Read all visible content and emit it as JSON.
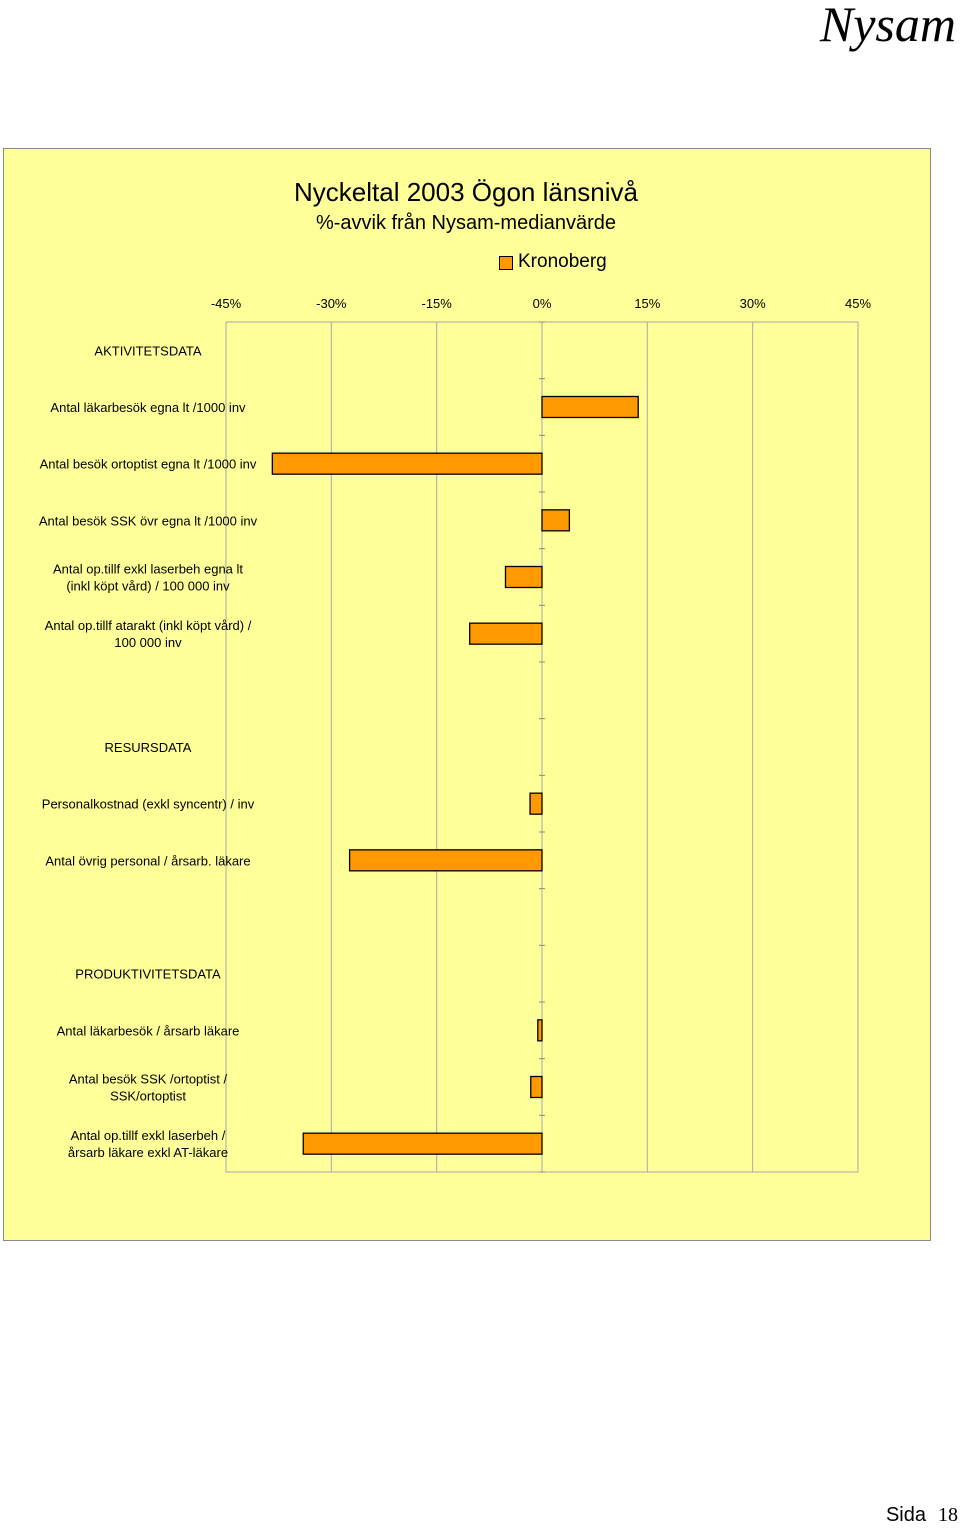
{
  "header": {
    "brand": "Nysam"
  },
  "footer": {
    "page_label": "Sida",
    "page_number": "18"
  },
  "colors": {
    "panel_bg": "#ffff99",
    "bar_fill": "#ff9900",
    "bar_stroke": "#000000",
    "grid": "#aaaaaa"
  },
  "chart_data": {
    "type": "bar",
    "orientation": "horizontal",
    "title": "Nyckeltal 2003  Ögon länsnivå",
    "subtitle": "%-avvik från Nysam-medianvärde",
    "legend": [
      "Kronoberg"
    ],
    "legend_position": "top-right",
    "xlim": [
      -45,
      45
    ],
    "x_ticks": [
      "-45%",
      "-30%",
      "-15%",
      "0%",
      "15%",
      "30%",
      "45%"
    ],
    "grid": true,
    "categories": [
      [
        "AKTIVITETSDATA"
      ],
      [
        "Antal läkarbesök egna lt /1000 inv"
      ],
      [
        "Antal besök ortoptist egna lt /1000 inv"
      ],
      [
        "Antal besök SSK övr egna lt /1000 inv"
      ],
      [
        "Antal op.tillf   exkl laserbeh egna lt",
        "(inkl köpt vård) / 100 000 inv"
      ],
      [
        "Antal op.tillf atarakt (inkl köpt vård) /",
        "100 000 inv"
      ],
      [
        ""
      ],
      [
        "RESURSDATA"
      ],
      [
        "Personalkostnad (exkl syncentr) / inv"
      ],
      [
        "Antal övrig personal / årsarb. läkare"
      ],
      [
        ""
      ],
      [
        "PRODUKTIVITETSDATA"
      ],
      [
        "Antal läkarbesök / årsarb läkare"
      ],
      [
        "Antal besök SSK /ortoptist /",
        "SSK/ortoptist"
      ],
      [
        "Antal op.tillf exkl laserbeh /",
        "årsarb läkare exkl AT-läkare"
      ]
    ],
    "series": [
      {
        "name": "Kronoberg",
        "values": [
          null,
          13.7,
          -38.4,
          3.9,
          -5.2,
          -10.3,
          null,
          null,
          -1.7,
          -27.4,
          null,
          null,
          -0.6,
          -1.6,
          -34.0
        ]
      }
    ]
  }
}
